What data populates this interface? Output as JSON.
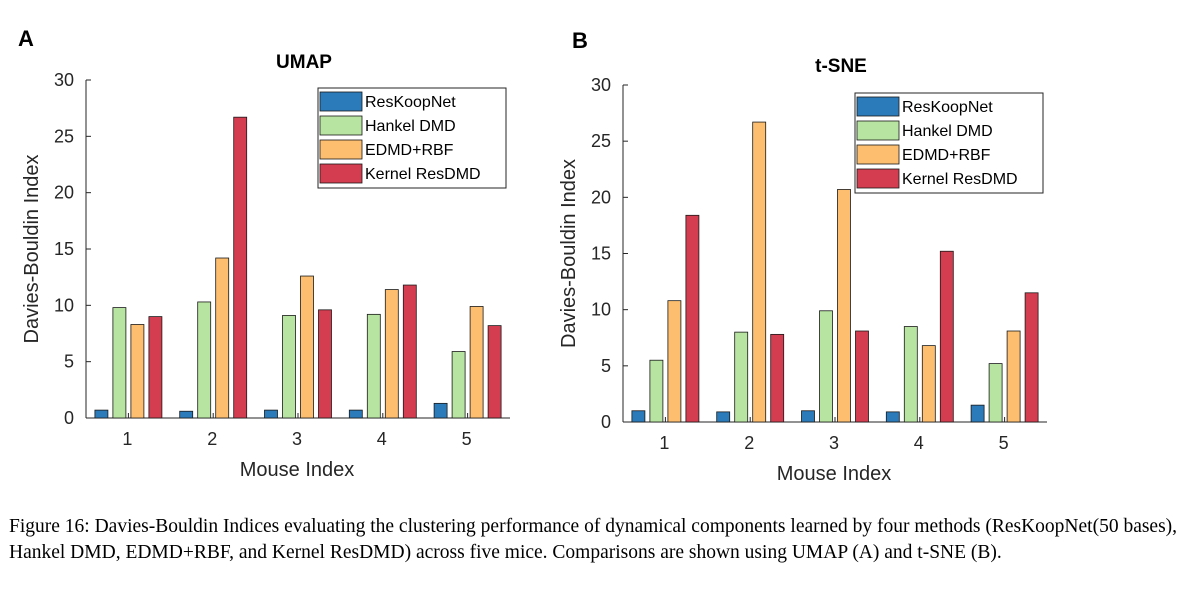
{
  "figure": {
    "caption": "Figure 16: Davies-Bouldin Indices evaluating the clustering performance of dynamical components learned by four methods (ResKoopNet(50 bases), Hankel DMD, EDMD+RBF, and Kernel ResDMD) across five mice. Comparisons are shown using UMAP (A) and t-SNE (B)."
  },
  "colors": {
    "ResKoopNet": "#2b7bba",
    "Hankel DMD": "#b7e4a0",
    "EDMD+RBF": "#fdbf6f",
    "Kernel ResDMD": "#d43d4f"
  },
  "chart_data": [
    {
      "panel": "A",
      "type": "bar",
      "title": "UMAP",
      "xlabel": "Mouse Index",
      "ylabel": "Davies-Bouldin Index",
      "categories": [
        "1",
        "2",
        "3",
        "4",
        "5"
      ],
      "ylim": [
        0,
        30
      ],
      "yticks": [
        0,
        5,
        10,
        15,
        20,
        25,
        30
      ],
      "legend_position": "top-right",
      "grid": false,
      "series": [
        {
          "name": "ResKoopNet",
          "values": [
            0.7,
            0.6,
            0.7,
            0.7,
            1.3
          ]
        },
        {
          "name": "Hankel DMD",
          "values": [
            9.8,
            10.3,
            9.1,
            9.2,
            5.9
          ]
        },
        {
          "name": "EDMD+RBF",
          "values": [
            8.3,
            14.2,
            12.6,
            11.4,
            9.9
          ]
        },
        {
          "name": "Kernel ResDMD",
          "values": [
            9.0,
            26.7,
            9.6,
            11.8,
            8.2
          ]
        }
      ]
    },
    {
      "panel": "B",
      "type": "bar",
      "title": "t-SNE",
      "xlabel": "Mouse Index",
      "ylabel": "Davies-Bouldin Index",
      "categories": [
        "1",
        "2",
        "3",
        "4",
        "5"
      ],
      "ylim": [
        0,
        30
      ],
      "yticks": [
        0,
        5,
        10,
        15,
        20,
        25,
        30
      ],
      "legend_position": "top-right",
      "grid": false,
      "series": [
        {
          "name": "ResKoopNet",
          "values": [
            1.0,
            0.9,
            1.0,
            0.9,
            1.5
          ]
        },
        {
          "name": "Hankel DMD",
          "values": [
            5.5,
            8.0,
            9.9,
            8.5,
            5.2
          ]
        },
        {
          "name": "EDMD+RBF",
          "values": [
            10.8,
            26.7,
            20.7,
            6.8,
            8.1
          ]
        },
        {
          "name": "Kernel ResDMD",
          "values": [
            18.4,
            7.8,
            8.1,
            15.2,
            11.5
          ]
        }
      ]
    }
  ]
}
